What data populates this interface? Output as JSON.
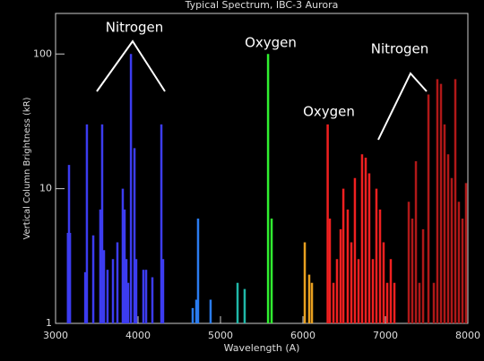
{
  "chart_data": {
    "type": "spectrum",
    "title": "Typical Spectrum, IBC-3 Aurora",
    "x_label": "Wavelength (A)",
    "y_label": "Vertical Column Brightness (kR)",
    "log_y": true,
    "xlim": [
      3000,
      8000
    ],
    "xticks": [
      3000,
      4000,
      5000,
      6000,
      7000,
      8000
    ],
    "ylim": [
      1,
      200
    ],
    "yticks": [
      1,
      10,
      100
    ],
    "annotations": [
      "Nitrogen",
      "Oxygen",
      "Oxygen",
      "Nitrogen"
    ],
    "series": [
      {
        "color": "#3c3cf0",
        "x": [
          3150,
          3163,
          3175,
          3360,
          3380,
          3457,
          3543,
          3565,
          3587,
          3630,
          3696,
          3750,
          3815,
          3837,
          3859,
          3880,
          3914,
          3957,
          3978,
          4065,
          4098,
          4174,
          4283,
          4304
        ],
        "values": [
          4.7,
          15,
          4.7,
          2.4,
          30,
          4.5,
          7,
          30,
          3.5,
          2.5,
          3,
          4,
          10,
          7,
          3,
          2,
          100,
          20,
          3,
          2.5,
          2.5,
          2.2,
          30,
          3
        ]
      },
      {
        "color": "#2a7cf0",
        "x": [
          4663,
          4707,
          4728,
          4880
        ],
        "values": [
          1.3,
          1.5,
          6,
          1.5
        ]
      },
      {
        "color": "#20b8a8",
        "x": [
          5207,
          5293
        ],
        "values": [
          2,
          1.8
        ]
      },
      {
        "color": "#30f030",
        "x": [
          5577,
          5620
        ],
        "values": [
          100,
          6
        ]
      },
      {
        "color": "#e8a020",
        "x": [
          6022,
          6076,
          6109
        ],
        "values": [
          4,
          2.3,
          2
        ]
      },
      {
        "color": "#f02020",
        "x": [
          6300,
          6326,
          6370,
          6413,
          6457,
          6490,
          6543,
          6587,
          6630,
          6674,
          6717,
          6761,
          6804,
          6848,
          6891,
          6935,
          6978,
          7022,
          7065,
          7109
        ],
        "values": [
          30,
          6,
          2,
          3,
          5,
          10,
          7,
          4,
          12,
          3,
          18,
          17,
          13,
          3,
          10,
          7,
          4,
          2,
          3,
          2
        ]
      },
      {
        "color": "#b01818",
        "x": [
          7283,
          7326,
          7370,
          7413,
          7457,
          7522,
          7587,
          7630,
          7674,
          7717,
          7761,
          7804,
          7848,
          7891,
          7935,
          7978
        ],
        "values": [
          8,
          6,
          16,
          2,
          5,
          50,
          2,
          65,
          60,
          30,
          18,
          12,
          65,
          8,
          6,
          11
        ]
      }
    ]
  }
}
